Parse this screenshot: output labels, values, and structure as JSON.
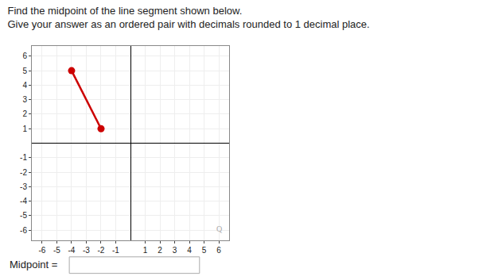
{
  "chart_data": {
    "type": "line",
    "title": "Find the midpoint of the line segment shown below.",
    "subtitle": "Give your answer as an ordered pair with decimals rounded to 1 decimal place.",
    "x": [
      -4,
      -2
    ],
    "values": [
      5,
      1
    ],
    "color": "#cc0000",
    "marker": "circle",
    "xlim": [
      -6.7,
      6.7
    ],
    "ylim": [
      -6.7,
      6.7
    ],
    "xticks": [
      -6,
      -5,
      -4,
      -3,
      -2,
      -1,
      1,
      2,
      3,
      4,
      5,
      6
    ],
    "yticks": [
      -6,
      -5,
      -4,
      -3,
      -2,
      -1,
      1,
      2,
      3,
      4,
      5,
      6
    ],
    "grid": true,
    "annotations": [
      "Midpoint =",
      "Q"
    ]
  }
}
